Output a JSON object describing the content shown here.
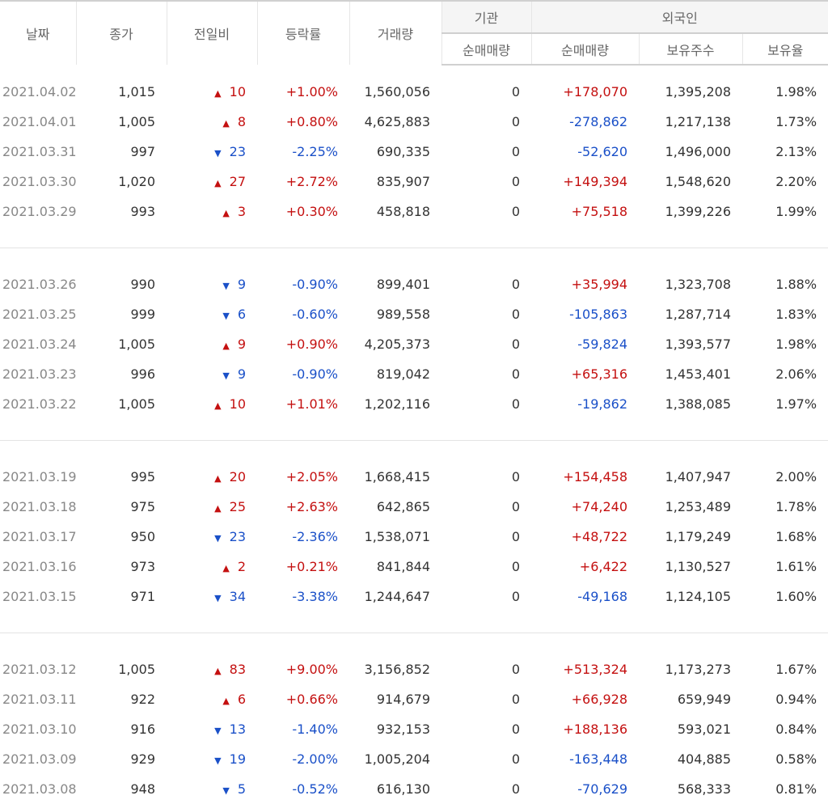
{
  "headers": {
    "date": "날짜",
    "close": "종가",
    "change": "전일비",
    "rate": "등락률",
    "volume": "거래량",
    "institution": "기관",
    "inst_net": "순매매량",
    "foreign": "외국인",
    "foreign_net": "순매매량",
    "foreign_holdings": "보유주수",
    "foreign_ratio": "보유율"
  },
  "colors": {
    "up": "#c41010",
    "down": "#1a50c8"
  },
  "groups": [
    [
      {
        "date": "2021.04.02",
        "close": "1,015",
        "dir": "up",
        "change": "10",
        "rate": "+1.00%",
        "volume": "1,560,056",
        "inst": "0",
        "fnet": "+178,070",
        "hold": "1,395,208",
        "ratio": "1.98%"
      },
      {
        "date": "2021.04.01",
        "close": "1,005",
        "dir": "up",
        "change": "8",
        "rate": "+0.80%",
        "volume": "4,625,883",
        "inst": "0",
        "fnet": "-278,862",
        "hold": "1,217,138",
        "ratio": "1.73%"
      },
      {
        "date": "2021.03.31",
        "close": "997",
        "dir": "down",
        "change": "23",
        "rate": "-2.25%",
        "volume": "690,335",
        "inst": "0",
        "fnet": "-52,620",
        "hold": "1,496,000",
        "ratio": "2.13%"
      },
      {
        "date": "2021.03.30",
        "close": "1,020",
        "dir": "up",
        "change": "27",
        "rate": "+2.72%",
        "volume": "835,907",
        "inst": "0",
        "fnet": "+149,394",
        "hold": "1,548,620",
        "ratio": "2.20%"
      },
      {
        "date": "2021.03.29",
        "close": "993",
        "dir": "up",
        "change": "3",
        "rate": "+0.30%",
        "volume": "458,818",
        "inst": "0",
        "fnet": "+75,518",
        "hold": "1,399,226",
        "ratio": "1.99%"
      }
    ],
    [
      {
        "date": "2021.03.26",
        "close": "990",
        "dir": "down",
        "change": "9",
        "rate": "-0.90%",
        "volume": "899,401",
        "inst": "0",
        "fnet": "+35,994",
        "hold": "1,323,708",
        "ratio": "1.88%"
      },
      {
        "date": "2021.03.25",
        "close": "999",
        "dir": "down",
        "change": "6",
        "rate": "-0.60%",
        "volume": "989,558",
        "inst": "0",
        "fnet": "-105,863",
        "hold": "1,287,714",
        "ratio": "1.83%"
      },
      {
        "date": "2021.03.24",
        "close": "1,005",
        "dir": "up",
        "change": "9",
        "rate": "+0.90%",
        "volume": "4,205,373",
        "inst": "0",
        "fnet": "-59,824",
        "hold": "1,393,577",
        "ratio": "1.98%"
      },
      {
        "date": "2021.03.23",
        "close": "996",
        "dir": "down",
        "change": "9",
        "rate": "-0.90%",
        "volume": "819,042",
        "inst": "0",
        "fnet": "+65,316",
        "hold": "1,453,401",
        "ratio": "2.06%"
      },
      {
        "date": "2021.03.22",
        "close": "1,005",
        "dir": "up",
        "change": "10",
        "rate": "+1.01%",
        "volume": "1,202,116",
        "inst": "0",
        "fnet": "-19,862",
        "hold": "1,388,085",
        "ratio": "1.97%"
      }
    ],
    [
      {
        "date": "2021.03.19",
        "close": "995",
        "dir": "up",
        "change": "20",
        "rate": "+2.05%",
        "volume": "1,668,415",
        "inst": "0",
        "fnet": "+154,458",
        "hold": "1,407,947",
        "ratio": "2.00%"
      },
      {
        "date": "2021.03.18",
        "close": "975",
        "dir": "up",
        "change": "25",
        "rate": "+2.63%",
        "volume": "642,865",
        "inst": "0",
        "fnet": "+74,240",
        "hold": "1,253,489",
        "ratio": "1.78%"
      },
      {
        "date": "2021.03.17",
        "close": "950",
        "dir": "down",
        "change": "23",
        "rate": "-2.36%",
        "volume": "1,538,071",
        "inst": "0",
        "fnet": "+48,722",
        "hold": "1,179,249",
        "ratio": "1.68%"
      },
      {
        "date": "2021.03.16",
        "close": "973",
        "dir": "up",
        "change": "2",
        "rate": "+0.21%",
        "volume": "841,844",
        "inst": "0",
        "fnet": "+6,422",
        "hold": "1,130,527",
        "ratio": "1.61%"
      },
      {
        "date": "2021.03.15",
        "close": "971",
        "dir": "down",
        "change": "34",
        "rate": "-3.38%",
        "volume": "1,244,647",
        "inst": "0",
        "fnet": "-49,168",
        "hold": "1,124,105",
        "ratio": "1.60%"
      }
    ],
    [
      {
        "date": "2021.03.12",
        "close": "1,005",
        "dir": "up",
        "change": "83",
        "rate": "+9.00%",
        "volume": "3,156,852",
        "inst": "0",
        "fnet": "+513,324",
        "hold": "1,173,273",
        "ratio": "1.67%"
      },
      {
        "date": "2021.03.11",
        "close": "922",
        "dir": "up",
        "change": "6",
        "rate": "+0.66%",
        "volume": "914,679",
        "inst": "0",
        "fnet": "+66,928",
        "hold": "659,949",
        "ratio": "0.94%"
      },
      {
        "date": "2021.03.10",
        "close": "916",
        "dir": "down",
        "change": "13",
        "rate": "-1.40%",
        "volume": "932,153",
        "inst": "0",
        "fnet": "+188,136",
        "hold": "593,021",
        "ratio": "0.84%"
      },
      {
        "date": "2021.03.09",
        "close": "929",
        "dir": "down",
        "change": "19",
        "rate": "-2.00%",
        "volume": "1,005,204",
        "inst": "0",
        "fnet": "-163,448",
        "hold": "404,885",
        "ratio": "0.58%"
      },
      {
        "date": "2021.03.08",
        "close": "948",
        "dir": "down",
        "change": "5",
        "rate": "-0.52%",
        "volume": "616,130",
        "inst": "0",
        "fnet": "-70,629",
        "hold": "568,333",
        "ratio": "0.81%"
      }
    ]
  ]
}
